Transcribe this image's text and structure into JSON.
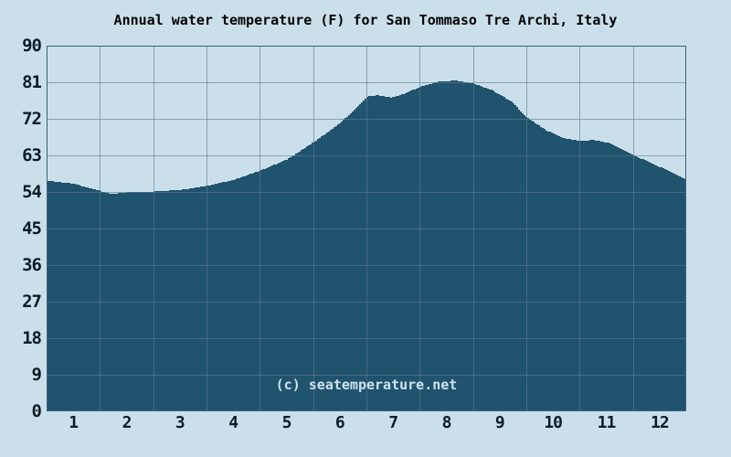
{
  "page": {
    "background": "#cbdfeb"
  },
  "chart_data": {
    "type": "area",
    "title": "Annual water temperature (F) for San Tommaso Tre Archi, Italy",
    "watermark": "(c) seatemperature.net",
    "xlabel": "",
    "ylabel": "",
    "x_unit": "month",
    "xlim": [
      0,
      12
    ],
    "ylim": [
      0,
      90
    ],
    "x_ticks": [
      1,
      2,
      3,
      4,
      5,
      6,
      7,
      8,
      9,
      10,
      11,
      12
    ],
    "y_ticks": [
      0,
      9,
      18,
      27,
      36,
      45,
      54,
      63,
      72,
      81,
      90
    ],
    "grid": true,
    "legend": "none",
    "colors": {
      "background": "#cbdfeb",
      "area_fill": "#20536e",
      "grid": "#5f7d8e",
      "grid_alpha": 0.62,
      "border": "#3a617a",
      "title_text": "#000000",
      "tick_text": "#0c1c26",
      "watermark_text": "#cfe2ed"
    },
    "series": [
      {
        "name": "water-temperature-f",
        "x": [
          0.0,
          0.25,
          0.5,
          0.75,
          1.0,
          1.2,
          1.5,
          2.0,
          2.5,
          3.0,
          3.5,
          4.0,
          4.5,
          5.0,
          5.5,
          5.8,
          6.0,
          6.2,
          6.45,
          6.7,
          7.0,
          7.35,
          7.65,
          8.0,
          8.35,
          8.7,
          9.0,
          9.35,
          9.7,
          10.0,
          10.25,
          10.55,
          11.0,
          11.35,
          11.7,
          12.0
        ],
        "values": [
          56.8,
          56.4,
          56.0,
          55.1,
          54.2,
          53.5,
          53.9,
          54.1,
          54.5,
          55.5,
          57.0,
          59.3,
          62.0,
          66.3,
          71.0,
          74.8,
          77.5,
          77.8,
          77.2,
          78.2,
          79.9,
          81.2,
          81.4,
          80.7,
          79.0,
          76.3,
          72.3,
          69.2,
          67.2,
          66.5,
          66.8,
          66.0,
          63.0,
          61.0,
          58.9,
          57.0
        ]
      }
    ]
  }
}
